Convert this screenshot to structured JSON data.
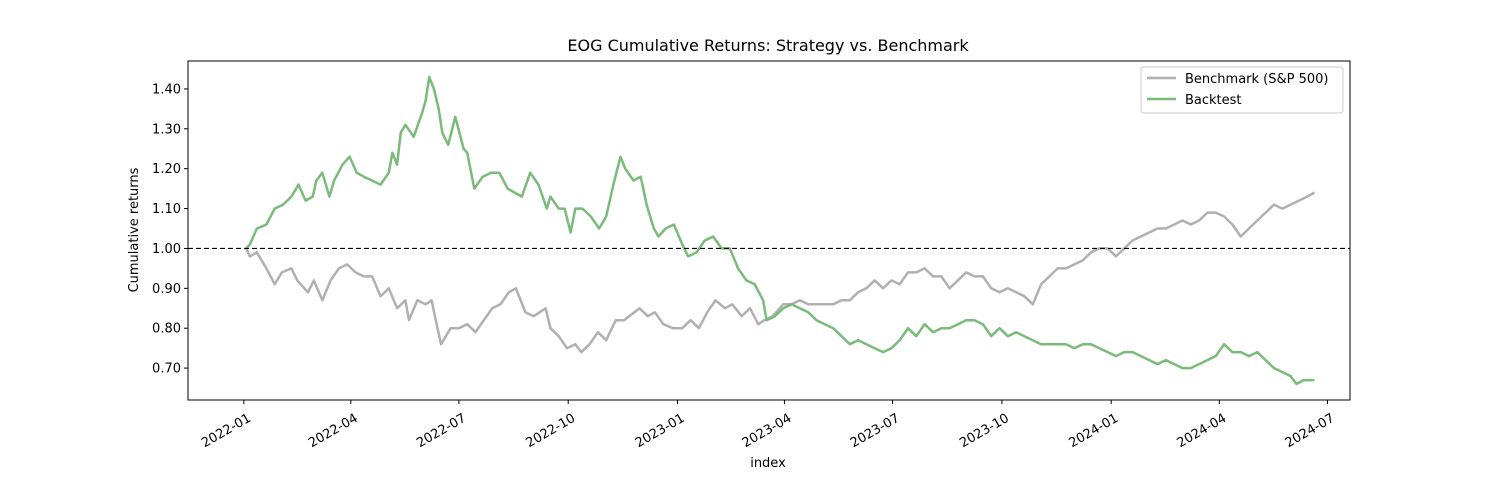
{
  "chart_data": {
    "type": "line",
    "title": "EOG Cumulative Returns: Strategy vs. Benchmark",
    "xlabel": "index",
    "ylabel": "Cumulative returns",
    "xlim": [
      "2021-11-15",
      "2024-07-20"
    ],
    "ylim": [
      0.62,
      1.47
    ],
    "yticks": [
      0.7,
      0.8,
      0.9,
      1.0,
      1.1,
      1.2,
      1.3,
      1.4
    ],
    "yticklabels": [
      "0.70",
      "0.80",
      "0.90",
      "1.00",
      "1.10",
      "1.20",
      "1.30",
      "1.40"
    ],
    "xticks": [
      "2022-01-01",
      "2022-04-01",
      "2022-07-01",
      "2022-10-01",
      "2023-01-01",
      "2023-04-01",
      "2023-07-01",
      "2023-10-01",
      "2024-01-01",
      "2024-04-01",
      "2024-07-01"
    ],
    "xticklabels": [
      "2022-01",
      "2022-04",
      "2022-07",
      "2022-10",
      "2023-01",
      "2023-04",
      "2023-07",
      "2023-10",
      "2024-01",
      "2024-04",
      "2024-07"
    ],
    "reference_line": {
      "y": 1.0,
      "style": "dashed",
      "color": "#000000"
    },
    "legend": {
      "placement": "top-right"
    },
    "grid": false,
    "series": [
      {
        "name": "Benchmark (S&P 500)",
        "color": "#b0b0b0",
        "points": [
          [
            "2022-01-03",
            1.0
          ],
          [
            "2022-01-06",
            0.98
          ],
          [
            "2022-01-12",
            0.99
          ],
          [
            "2022-01-20",
            0.95
          ],
          [
            "2022-01-27",
            0.91
          ],
          [
            "2022-02-02",
            0.94
          ],
          [
            "2022-02-10",
            0.95
          ],
          [
            "2022-02-15",
            0.92
          ],
          [
            "2022-02-24",
            0.89
          ],
          [
            "2022-03-01",
            0.92
          ],
          [
            "2022-03-08",
            0.87
          ],
          [
            "2022-03-15",
            0.92
          ],
          [
            "2022-03-22",
            0.95
          ],
          [
            "2022-03-29",
            0.96
          ],
          [
            "2022-04-05",
            0.94
          ],
          [
            "2022-04-12",
            0.93
          ],
          [
            "2022-04-19",
            0.93
          ],
          [
            "2022-04-26",
            0.88
          ],
          [
            "2022-05-03",
            0.9
          ],
          [
            "2022-05-10",
            0.85
          ],
          [
            "2022-05-17",
            0.87
          ],
          [
            "2022-05-20",
            0.82
          ],
          [
            "2022-05-27",
            0.87
          ],
          [
            "2022-06-03",
            0.86
          ],
          [
            "2022-06-08",
            0.87
          ],
          [
            "2022-06-13",
            0.8
          ],
          [
            "2022-06-16",
            0.76
          ],
          [
            "2022-06-24",
            0.8
          ],
          [
            "2022-07-01",
            0.8
          ],
          [
            "2022-07-08",
            0.81
          ],
          [
            "2022-07-15",
            0.79
          ],
          [
            "2022-07-22",
            0.82
          ],
          [
            "2022-07-29",
            0.85
          ],
          [
            "2022-08-05",
            0.86
          ],
          [
            "2022-08-12",
            0.89
          ],
          [
            "2022-08-18",
            0.9
          ],
          [
            "2022-08-26",
            0.84
          ],
          [
            "2022-09-02",
            0.83
          ],
          [
            "2022-09-12",
            0.85
          ],
          [
            "2022-09-16",
            0.8
          ],
          [
            "2022-09-23",
            0.78
          ],
          [
            "2022-09-30",
            0.75
          ],
          [
            "2022-10-07",
            0.76
          ],
          [
            "2022-10-12",
            0.74
          ],
          [
            "2022-10-19",
            0.76
          ],
          [
            "2022-10-26",
            0.79
          ],
          [
            "2022-11-02",
            0.77
          ],
          [
            "2022-11-10",
            0.82
          ],
          [
            "2022-11-17",
            0.82
          ],
          [
            "2022-11-30",
            0.85
          ],
          [
            "2022-12-07",
            0.83
          ],
          [
            "2022-12-13",
            0.84
          ],
          [
            "2022-12-20",
            0.81
          ],
          [
            "2022-12-28",
            0.8
          ],
          [
            "2023-01-05",
            0.8
          ],
          [
            "2023-01-12",
            0.82
          ],
          [
            "2023-01-19",
            0.8
          ],
          [
            "2023-01-26",
            0.84
          ],
          [
            "2023-02-02",
            0.87
          ],
          [
            "2023-02-10",
            0.85
          ],
          [
            "2023-02-16",
            0.86
          ],
          [
            "2023-02-24",
            0.83
          ],
          [
            "2023-03-03",
            0.85
          ],
          [
            "2023-03-10",
            0.81
          ],
          [
            "2023-03-15",
            0.82
          ],
          [
            "2023-03-22",
            0.83
          ],
          [
            "2023-03-31",
            0.86
          ],
          [
            "2023-04-07",
            0.86
          ],
          [
            "2023-04-14",
            0.87
          ],
          [
            "2023-04-21",
            0.86
          ],
          [
            "2023-04-28",
            0.86
          ],
          [
            "2023-05-05",
            0.86
          ],
          [
            "2023-05-12",
            0.86
          ],
          [
            "2023-05-19",
            0.87
          ],
          [
            "2023-05-26",
            0.87
          ],
          [
            "2023-06-02",
            0.89
          ],
          [
            "2023-06-09",
            0.9
          ],
          [
            "2023-06-16",
            0.92
          ],
          [
            "2023-06-23",
            0.9
          ],
          [
            "2023-06-30",
            0.92
          ],
          [
            "2023-07-07",
            0.91
          ],
          [
            "2023-07-14",
            0.94
          ],
          [
            "2023-07-21",
            0.94
          ],
          [
            "2023-07-28",
            0.95
          ],
          [
            "2023-08-04",
            0.93
          ],
          [
            "2023-08-11",
            0.93
          ],
          [
            "2023-08-18",
            0.9
          ],
          [
            "2023-08-25",
            0.92
          ],
          [
            "2023-09-01",
            0.94
          ],
          [
            "2023-09-08",
            0.93
          ],
          [
            "2023-09-15",
            0.93
          ],
          [
            "2023-09-22",
            0.9
          ],
          [
            "2023-09-29",
            0.89
          ],
          [
            "2023-10-06",
            0.9
          ],
          [
            "2023-10-13",
            0.89
          ],
          [
            "2023-10-20",
            0.88
          ],
          [
            "2023-10-27",
            0.86
          ],
          [
            "2023-11-03",
            0.91
          ],
          [
            "2023-11-10",
            0.93
          ],
          [
            "2023-11-17",
            0.95
          ],
          [
            "2023-11-24",
            0.95
          ],
          [
            "2023-12-01",
            0.96
          ],
          [
            "2023-12-08",
            0.97
          ],
          [
            "2023-12-15",
            0.99
          ],
          [
            "2023-12-22",
            1.0
          ],
          [
            "2023-12-29",
            1.0
          ],
          [
            "2024-01-05",
            0.98
          ],
          [
            "2024-01-12",
            1.0
          ],
          [
            "2024-01-19",
            1.02
          ],
          [
            "2024-01-26",
            1.03
          ],
          [
            "2024-02-02",
            1.04
          ],
          [
            "2024-02-09",
            1.05
          ],
          [
            "2024-02-16",
            1.05
          ],
          [
            "2024-02-23",
            1.06
          ],
          [
            "2024-03-01",
            1.07
          ],
          [
            "2024-03-08",
            1.06
          ],
          [
            "2024-03-15",
            1.07
          ],
          [
            "2024-03-22",
            1.09
          ],
          [
            "2024-03-29",
            1.09
          ],
          [
            "2024-04-05",
            1.08
          ],
          [
            "2024-04-12",
            1.06
          ],
          [
            "2024-04-19",
            1.03
          ],
          [
            "2024-04-26",
            1.05
          ],
          [
            "2024-05-03",
            1.07
          ],
          [
            "2024-05-10",
            1.09
          ],
          [
            "2024-05-17",
            1.11
          ],
          [
            "2024-05-24",
            1.1
          ],
          [
            "2024-05-31",
            1.11
          ],
          [
            "2024-06-07",
            1.12
          ],
          [
            "2024-06-14",
            1.13
          ],
          [
            "2024-06-20",
            1.14
          ]
        ]
      },
      {
        "name": "Backtest",
        "color": "#7aba7a",
        "points": [
          [
            "2022-01-03",
            1.0
          ],
          [
            "2022-01-06",
            1.01
          ],
          [
            "2022-01-12",
            1.05
          ],
          [
            "2022-01-20",
            1.06
          ],
          [
            "2022-01-27",
            1.1
          ],
          [
            "2022-02-03",
            1.11
          ],
          [
            "2022-02-10",
            1.13
          ],
          [
            "2022-02-16",
            1.16
          ],
          [
            "2022-02-22",
            1.12
          ],
          [
            "2022-02-28",
            1.13
          ],
          [
            "2022-03-03",
            1.17
          ],
          [
            "2022-03-08",
            1.19
          ],
          [
            "2022-03-14",
            1.13
          ],
          [
            "2022-03-18",
            1.17
          ],
          [
            "2022-03-25",
            1.21
          ],
          [
            "2022-03-31",
            1.23
          ],
          [
            "2022-04-06",
            1.19
          ],
          [
            "2022-04-12",
            1.18
          ],
          [
            "2022-04-19",
            1.17
          ],
          [
            "2022-04-26",
            1.16
          ],
          [
            "2022-05-03",
            1.19
          ],
          [
            "2022-05-06",
            1.24
          ],
          [
            "2022-05-10",
            1.21
          ],
          [
            "2022-05-13",
            1.29
          ],
          [
            "2022-05-17",
            1.31
          ],
          [
            "2022-05-24",
            1.28
          ],
          [
            "2022-05-31",
            1.34
          ],
          [
            "2022-06-03",
            1.37
          ],
          [
            "2022-06-06",
            1.43
          ],
          [
            "2022-06-10",
            1.4
          ],
          [
            "2022-06-14",
            1.35
          ],
          [
            "2022-06-17",
            1.29
          ],
          [
            "2022-06-22",
            1.26
          ],
          [
            "2022-06-28",
            1.33
          ],
          [
            "2022-07-05",
            1.25
          ],
          [
            "2022-07-08",
            1.24
          ],
          [
            "2022-07-14",
            1.15
          ],
          [
            "2022-07-21",
            1.18
          ],
          [
            "2022-07-28",
            1.19
          ],
          [
            "2022-08-04",
            1.19
          ],
          [
            "2022-08-11",
            1.15
          ],
          [
            "2022-08-17",
            1.14
          ],
          [
            "2022-08-23",
            1.13
          ],
          [
            "2022-08-30",
            1.19
          ],
          [
            "2022-09-06",
            1.16
          ],
          [
            "2022-09-13",
            1.1
          ],
          [
            "2022-09-16",
            1.13
          ],
          [
            "2022-09-23",
            1.1
          ],
          [
            "2022-09-28",
            1.1
          ],
          [
            "2022-10-03",
            1.04
          ],
          [
            "2022-10-07",
            1.1
          ],
          [
            "2022-10-13",
            1.1
          ],
          [
            "2022-10-20",
            1.08
          ],
          [
            "2022-10-27",
            1.05
          ],
          [
            "2022-11-02",
            1.08
          ],
          [
            "2022-11-08",
            1.16
          ],
          [
            "2022-11-14",
            1.23
          ],
          [
            "2022-11-18",
            1.2
          ],
          [
            "2022-11-25",
            1.17
          ],
          [
            "2022-12-01",
            1.18
          ],
          [
            "2022-12-06",
            1.11
          ],
          [
            "2022-12-12",
            1.05
          ],
          [
            "2022-12-16",
            1.03
          ],
          [
            "2022-12-22",
            1.05
          ],
          [
            "2022-12-29",
            1.06
          ],
          [
            "2023-01-05",
            1.01
          ],
          [
            "2023-01-10",
            0.98
          ],
          [
            "2023-01-17",
            0.99
          ],
          [
            "2023-01-24",
            1.02
          ],
          [
            "2023-01-31",
            1.03
          ],
          [
            "2023-02-07",
            1.0
          ],
          [
            "2023-02-14",
            1.0
          ],
          [
            "2023-02-21",
            0.95
          ],
          [
            "2023-02-28",
            0.92
          ],
          [
            "2023-03-07",
            0.91
          ],
          [
            "2023-03-14",
            0.87
          ],
          [
            "2023-03-17",
            0.82
          ],
          [
            "2023-03-24",
            0.83
          ],
          [
            "2023-03-31",
            0.85
          ],
          [
            "2023-04-07",
            0.86
          ],
          [
            "2023-04-14",
            0.85
          ],
          [
            "2023-04-21",
            0.84
          ],
          [
            "2023-04-28",
            0.82
          ],
          [
            "2023-05-05",
            0.81
          ],
          [
            "2023-05-12",
            0.8
          ],
          [
            "2023-05-19",
            0.78
          ],
          [
            "2023-05-26",
            0.76
          ],
          [
            "2023-06-02",
            0.77
          ],
          [
            "2023-06-09",
            0.76
          ],
          [
            "2023-06-16",
            0.75
          ],
          [
            "2023-06-23",
            0.74
          ],
          [
            "2023-06-30",
            0.75
          ],
          [
            "2023-07-07",
            0.77
          ],
          [
            "2023-07-14",
            0.8
          ],
          [
            "2023-07-21",
            0.78
          ],
          [
            "2023-07-28",
            0.81
          ],
          [
            "2023-08-04",
            0.79
          ],
          [
            "2023-08-11",
            0.8
          ],
          [
            "2023-08-18",
            0.8
          ],
          [
            "2023-08-25",
            0.81
          ],
          [
            "2023-09-01",
            0.82
          ],
          [
            "2023-09-08",
            0.82
          ],
          [
            "2023-09-15",
            0.81
          ],
          [
            "2023-09-22",
            0.78
          ],
          [
            "2023-09-29",
            0.8
          ],
          [
            "2023-10-06",
            0.78
          ],
          [
            "2023-10-13",
            0.79
          ],
          [
            "2023-10-20",
            0.78
          ],
          [
            "2023-10-27",
            0.77
          ],
          [
            "2023-11-03",
            0.76
          ],
          [
            "2023-11-10",
            0.76
          ],
          [
            "2023-11-17",
            0.76
          ],
          [
            "2023-11-24",
            0.76
          ],
          [
            "2023-12-01",
            0.75
          ],
          [
            "2023-12-08",
            0.76
          ],
          [
            "2023-12-15",
            0.76
          ],
          [
            "2023-12-22",
            0.75
          ],
          [
            "2023-12-29",
            0.74
          ],
          [
            "2024-01-05",
            0.73
          ],
          [
            "2024-01-12",
            0.74
          ],
          [
            "2024-01-19",
            0.74
          ],
          [
            "2024-01-26",
            0.73
          ],
          [
            "2024-02-02",
            0.72
          ],
          [
            "2024-02-09",
            0.71
          ],
          [
            "2024-02-16",
            0.72
          ],
          [
            "2024-02-23",
            0.71
          ],
          [
            "2024-03-01",
            0.7
          ],
          [
            "2024-03-08",
            0.7
          ],
          [
            "2024-03-15",
            0.71
          ],
          [
            "2024-03-22",
            0.72
          ],
          [
            "2024-03-29",
            0.73
          ],
          [
            "2024-04-05",
            0.76
          ],
          [
            "2024-04-12",
            0.74
          ],
          [
            "2024-04-19",
            0.74
          ],
          [
            "2024-04-26",
            0.73
          ],
          [
            "2024-05-03",
            0.74
          ],
          [
            "2024-05-10",
            0.72
          ],
          [
            "2024-05-17",
            0.7
          ],
          [
            "2024-05-24",
            0.69
          ],
          [
            "2024-05-31",
            0.68
          ],
          [
            "2024-06-05",
            0.66
          ],
          [
            "2024-06-11",
            0.67
          ],
          [
            "2024-06-20",
            0.67
          ]
        ]
      }
    ]
  }
}
